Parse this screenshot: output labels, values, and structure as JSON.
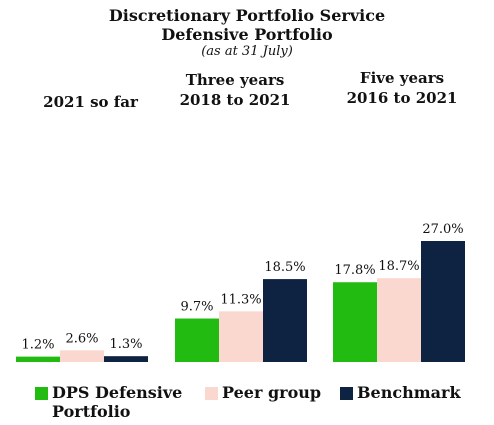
{
  "chart_data": {
    "type": "bar",
    "title": "Discretionary Portfolio Service",
    "subtitle": "Defensive Portfolio",
    "note": "(as at 31 July)",
    "groups": [
      {
        "label_lines": [
          "2021 so far"
        ]
      },
      {
        "label_lines": [
          "Three years",
          "2018 to 2021"
        ]
      },
      {
        "label_lines": [
          "Five years",
          "2016 to 2021"
        ]
      }
    ],
    "series": [
      {
        "name": "DPS Defensive Portfolio",
        "legend_lines": [
          "DPS Defensive",
          "Portfolio"
        ],
        "color": "#22bb11",
        "values": [
          1.2,
          9.7,
          17.8
        ],
        "labels": [
          "1.2%",
          "9.7%",
          "17.8%"
        ]
      },
      {
        "name": "Peer group",
        "legend_lines": [
          "Peer group"
        ],
        "color": "#fad7cf",
        "values": [
          2.6,
          11.3,
          18.7
        ],
        "labels": [
          "2.6%",
          "11.3%",
          "18.7%"
        ]
      },
      {
        "name": "Benchmark",
        "legend_lines": [
          "Benchmark"
        ],
        "color": "#0e2341",
        "values": [
          1.3,
          18.5,
          27.0
        ],
        "labels": [
          "1.3%",
          "18.5%",
          "27.0%"
        ]
      }
    ],
    "ylim": [
      0,
      27.0
    ],
    "grid": false,
    "legend_position": "bottom"
  }
}
